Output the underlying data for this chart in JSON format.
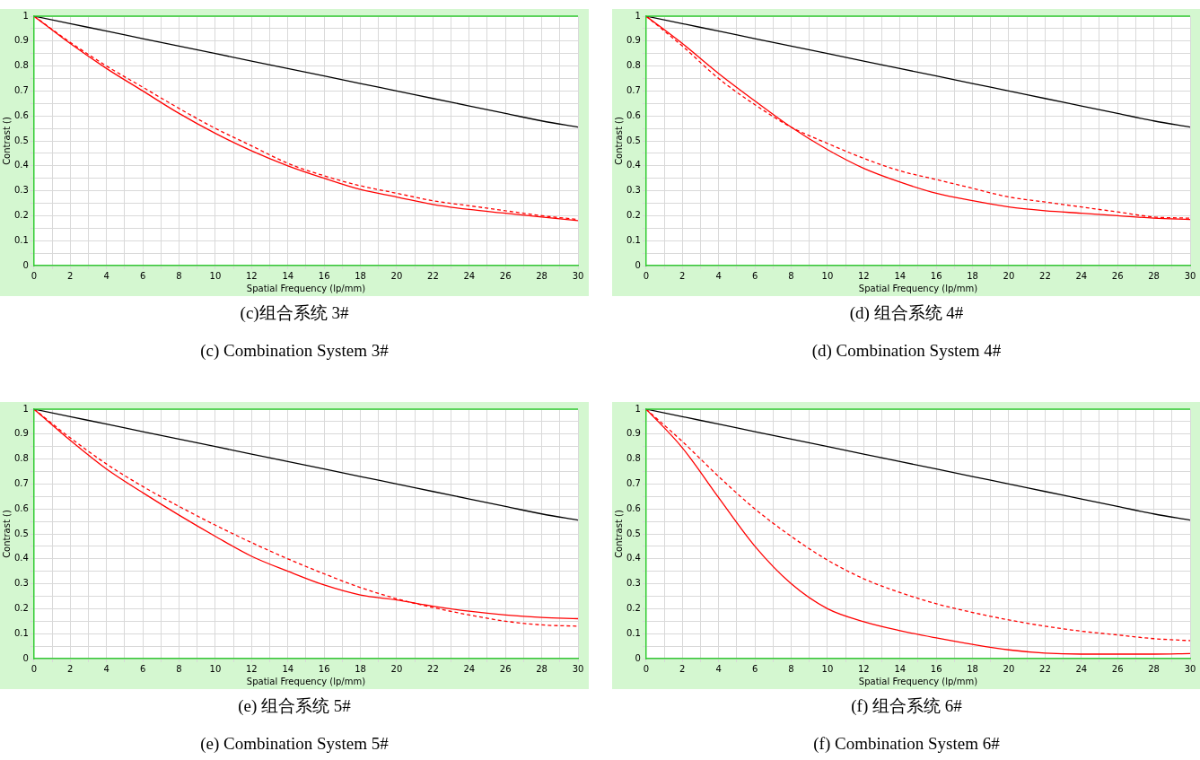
{
  "chart_data": [
    {
      "type": "line",
      "title": "(c)组合系统 3#",
      "subtitle": "(c) Combination System 3#",
      "xlabel": "Spatial Frequency (lp/mm)",
      "ylabel": "Contrast ()",
      "grid": true,
      "x": [
        0,
        2,
        4,
        6,
        8,
        10,
        12,
        14,
        16,
        18,
        20,
        22,
        24,
        26,
        28,
        30
      ],
      "series": [
        {
          "color": "#000000",
          "line_style": "solid",
          "values": [
            1,
            0.97,
            0.94,
            0.91,
            0.88,
            0.85,
            0.82,
            0.79,
            0.76,
            0.73,
            0.7,
            0.67,
            0.64,
            0.61,
            0.58,
            0.555
          ]
        },
        {
          "color": "#ff0000",
          "line_style": "solid",
          "values": [
            1,
            0.89,
            0.79,
            0.7,
            0.61,
            0.53,
            0.46,
            0.4,
            0.35,
            0.305,
            0.275,
            0.245,
            0.225,
            0.21,
            0.195,
            0.18
          ]
        },
        {
          "color": "#ff0000",
          "line_style": "dashed",
          "values": [
            1,
            0.895,
            0.8,
            0.715,
            0.63,
            0.55,
            0.48,
            0.41,
            0.36,
            0.32,
            0.29,
            0.26,
            0.24,
            0.22,
            0.2,
            0.185
          ]
        }
      ],
      "xlim": [
        0,
        30
      ],
      "ylim": [
        0,
        1
      ],
      "xticks": [
        0,
        {
          "value": 1,
          "label": null
        },
        2,
        {
          "value": 3,
          "label": null
        },
        4,
        {
          "value": 5,
          "label": null
        },
        6,
        {
          "value": 7,
          "label": null
        },
        8,
        {
          "value": 9,
          "label": null
        },
        10,
        {
          "value": 11,
          "label": null
        },
        12,
        {
          "value": 13,
          "label": null
        },
        14,
        {
          "value": 15,
          "label": null
        },
        16,
        {
          "value": 17,
          "label": null
        },
        18,
        {
          "value": 19,
          "label": null
        },
        20,
        {
          "value": 21,
          "label": null
        },
        22,
        {
          "value": 23,
          "label": null
        },
        24,
        {
          "value": 25,
          "label": null
        },
        26,
        {
          "value": 27,
          "label": null
        },
        28,
        {
          "value": 29,
          "label": null
        },
        30
      ],
      "yticks": [
        0,
        {
          "value": 0.05,
          "label": null
        },
        0.1,
        {
          "value": 0.15,
          "label": null
        },
        0.2,
        {
          "value": 0.25,
          "label": null
        },
        0.3,
        {
          "value": 0.35,
          "label": null
        },
        0.4,
        {
          "value": 0.45,
          "label": null
        },
        0.5,
        {
          "value": 0.55,
          "label": null
        },
        0.6,
        {
          "value": 0.65,
          "label": null
        },
        0.7,
        {
          "value": 0.75,
          "label": null
        },
        0.8,
        {
          "value": 0.85,
          "label": null
        },
        0.9,
        {
          "value": 0.95,
          "label": null
        },
        1
      ]
    },
    {
      "type": "line",
      "title": "(d)  组合系统 4#",
      "subtitle": "(d) Combination System 4#",
      "xlabel": "Spatial Frequency (lp/mm)",
      "ylabel": "Contrast ()",
      "grid": true,
      "x": [
        0,
        2,
        4,
        6,
        8,
        10,
        12,
        14,
        16,
        18,
        20,
        22,
        24,
        26,
        28,
        30
      ],
      "series": [
        {
          "color": "#000000",
          "line_style": "solid",
          "values": [
            1,
            0.97,
            0.94,
            0.91,
            0.88,
            0.85,
            0.82,
            0.79,
            0.76,
            0.73,
            0.7,
            0.67,
            0.64,
            0.61,
            0.58,
            0.555
          ]
        },
        {
          "color": "#ff0000",
          "line_style": "solid",
          "values": [
            1,
            0.89,
            0.77,
            0.66,
            0.555,
            0.465,
            0.39,
            0.335,
            0.29,
            0.26,
            0.235,
            0.22,
            0.21,
            0.2,
            0.19,
            0.185
          ]
        },
        {
          "color": "#ff0000",
          "line_style": "dashed",
          "values": [
            1,
            0.88,
            0.75,
            0.645,
            0.555,
            0.49,
            0.43,
            0.38,
            0.345,
            0.31,
            0.275,
            0.255,
            0.235,
            0.215,
            0.195,
            0.19
          ]
        }
      ],
      "xlim": [
        0,
        30
      ],
      "ylim": [
        0,
        1
      ],
      "xticks": [
        0,
        {
          "value": 1,
          "label": null
        },
        2,
        {
          "value": 3,
          "label": null
        },
        4,
        {
          "value": 5,
          "label": null
        },
        6,
        {
          "value": 7,
          "label": null
        },
        8,
        {
          "value": 9,
          "label": null
        },
        10,
        {
          "value": 11,
          "label": null
        },
        12,
        {
          "value": 13,
          "label": null
        },
        14,
        {
          "value": 15,
          "label": null
        },
        16,
        {
          "value": 17,
          "label": null
        },
        18,
        {
          "value": 19,
          "label": null
        },
        20,
        {
          "value": 21,
          "label": null
        },
        22,
        {
          "value": 23,
          "label": null
        },
        24,
        {
          "value": 25,
          "label": null
        },
        26,
        {
          "value": 27,
          "label": null
        },
        28,
        {
          "value": 29,
          "label": null
        },
        30
      ],
      "yticks": [
        0,
        {
          "value": 0.05,
          "label": null
        },
        0.1,
        {
          "value": 0.15,
          "label": null
        },
        0.2,
        {
          "value": 0.25,
          "label": null
        },
        0.3,
        {
          "value": 0.35,
          "label": null
        },
        0.4,
        {
          "value": 0.45,
          "label": null
        },
        0.5,
        {
          "value": 0.55,
          "label": null
        },
        0.6,
        {
          "value": 0.65,
          "label": null
        },
        0.7,
        {
          "value": 0.75,
          "label": null
        },
        0.8,
        {
          "value": 0.85,
          "label": null
        },
        0.9,
        {
          "value": 0.95,
          "label": null
        },
        1
      ]
    },
    {
      "type": "line",
      "title": "(e)  组合系统 5#",
      "subtitle": "(e) Combination System 5#",
      "xlabel": "Spatial Frequency (lp/mm)",
      "ylabel": "Contrast ()",
      "grid": true,
      "x": [
        0,
        2,
        4,
        6,
        8,
        10,
        12,
        14,
        16,
        18,
        20,
        22,
        24,
        26,
        28,
        30
      ],
      "series": [
        {
          "color": "#000000",
          "line_style": "solid",
          "values": [
            1,
            0.97,
            0.94,
            0.91,
            0.88,
            0.85,
            0.82,
            0.79,
            0.76,
            0.73,
            0.7,
            0.67,
            0.64,
            0.61,
            0.58,
            0.555
          ]
        },
        {
          "color": "#ff0000",
          "line_style": "solid",
          "values": [
            1,
            0.875,
            0.76,
            0.665,
            0.575,
            0.49,
            0.41,
            0.35,
            0.295,
            0.255,
            0.235,
            0.21,
            0.19,
            0.175,
            0.165,
            0.16
          ]
        },
        {
          "color": "#ff0000",
          "line_style": "dashed",
          "values": [
            1,
            0.885,
            0.78,
            0.69,
            0.61,
            0.535,
            0.465,
            0.4,
            0.34,
            0.285,
            0.24,
            0.205,
            0.175,
            0.15,
            0.135,
            0.13
          ]
        }
      ],
      "xlim": [
        0,
        30
      ],
      "ylim": [
        0,
        1
      ],
      "xticks": [
        0,
        {
          "value": 1,
          "label": null
        },
        2,
        {
          "value": 3,
          "label": null
        },
        4,
        {
          "value": 5,
          "label": null
        },
        6,
        {
          "value": 7,
          "label": null
        },
        8,
        {
          "value": 9,
          "label": null
        },
        10,
        {
          "value": 11,
          "label": null
        },
        12,
        {
          "value": 13,
          "label": null
        },
        14,
        {
          "value": 15,
          "label": null
        },
        16,
        {
          "value": 17,
          "label": null
        },
        18,
        {
          "value": 19,
          "label": null
        },
        20,
        {
          "value": 21,
          "label": null
        },
        22,
        {
          "value": 23,
          "label": null
        },
        24,
        {
          "value": 25,
          "label": null
        },
        26,
        {
          "value": 27,
          "label": null
        },
        28,
        {
          "value": 29,
          "label": null
        },
        30
      ],
      "yticks": [
        0,
        {
          "value": 0.05,
          "label": null
        },
        0.1,
        {
          "value": 0.15,
          "label": null
        },
        0.2,
        {
          "value": 0.25,
          "label": null
        },
        0.3,
        {
          "value": 0.35,
          "label": null
        },
        0.4,
        {
          "value": 0.45,
          "label": null
        },
        0.5,
        {
          "value": 0.55,
          "label": null
        },
        0.6,
        {
          "value": 0.65,
          "label": null
        },
        0.7,
        {
          "value": 0.75,
          "label": null
        },
        0.8,
        {
          "value": 0.85,
          "label": null
        },
        0.9,
        {
          "value": 0.95,
          "label": null
        },
        1
      ]
    },
    {
      "type": "line",
      "title": "(f)  组合系统 6#",
      "subtitle": "(f) Combination System 6#",
      "xlabel": "Spatial Frequency (lp/mm)",
      "ylabel": "Contrast ()",
      "grid": true,
      "x": [
        0,
        2,
        4,
        6,
        8,
        10,
        12,
        14,
        16,
        18,
        20,
        22,
        24,
        26,
        28,
        30
      ],
      "series": [
        {
          "color": "#000000",
          "line_style": "solid",
          "values": [
            1,
            0.97,
            0.94,
            0.91,
            0.88,
            0.85,
            0.82,
            0.79,
            0.76,
            0.73,
            0.7,
            0.67,
            0.64,
            0.61,
            0.58,
            0.555
          ]
        },
        {
          "color": "#ff0000",
          "line_style": "solid",
          "values": [
            1,
            0.845,
            0.645,
            0.45,
            0.3,
            0.2,
            0.148,
            0.112,
            0.083,
            0.057,
            0.035,
            0.022,
            0.018,
            0.018,
            0.018,
            0.02
          ]
        },
        {
          "color": "#ff0000",
          "line_style": "dashed",
          "values": [
            1,
            0.87,
            0.73,
            0.6,
            0.49,
            0.395,
            0.32,
            0.265,
            0.22,
            0.185,
            0.155,
            0.13,
            0.11,
            0.095,
            0.08,
            0.072
          ]
        }
      ],
      "xlim": [
        0,
        30
      ],
      "ylim": [
        0,
        1
      ],
      "xticks": [
        0,
        {
          "value": 1,
          "label": null
        },
        2,
        {
          "value": 3,
          "label": null
        },
        4,
        {
          "value": 5,
          "label": null
        },
        6,
        {
          "value": 7,
          "label": null
        },
        8,
        {
          "value": 9,
          "label": null
        },
        10,
        {
          "value": 11,
          "label": null
        },
        12,
        {
          "value": 13,
          "label": null
        },
        14,
        {
          "value": 15,
          "label": null
        },
        16,
        {
          "value": 17,
          "label": null
        },
        18,
        {
          "value": 19,
          "label": null
        },
        20,
        {
          "value": 21,
          "label": null
        },
        22,
        {
          "value": 23,
          "label": null
        },
        24,
        {
          "value": 25,
          "label": null
        },
        26,
        {
          "value": 27,
          "label": null
        },
        28,
        {
          "value": 29,
          "label": null
        },
        30
      ],
      "yticks": [
        0,
        {
          "value": 0.05,
          "label": null
        },
        0.1,
        {
          "value": 0.15,
          "label": null
        },
        0.2,
        {
          "value": 0.25,
          "label": null
        },
        0.3,
        {
          "value": 0.35,
          "label": null
        },
        0.4,
        {
          "value": 0.45,
          "label": null
        },
        0.5,
        {
          "value": 0.55,
          "label": null
        },
        0.6,
        {
          "value": 0.65,
          "label": null
        },
        0.7,
        {
          "value": 0.75,
          "label": null
        },
        0.8,
        {
          "value": 0.85,
          "label": null
        },
        0.9,
        {
          "value": 0.95,
          "label": null
        },
        1
      ]
    }
  ]
}
